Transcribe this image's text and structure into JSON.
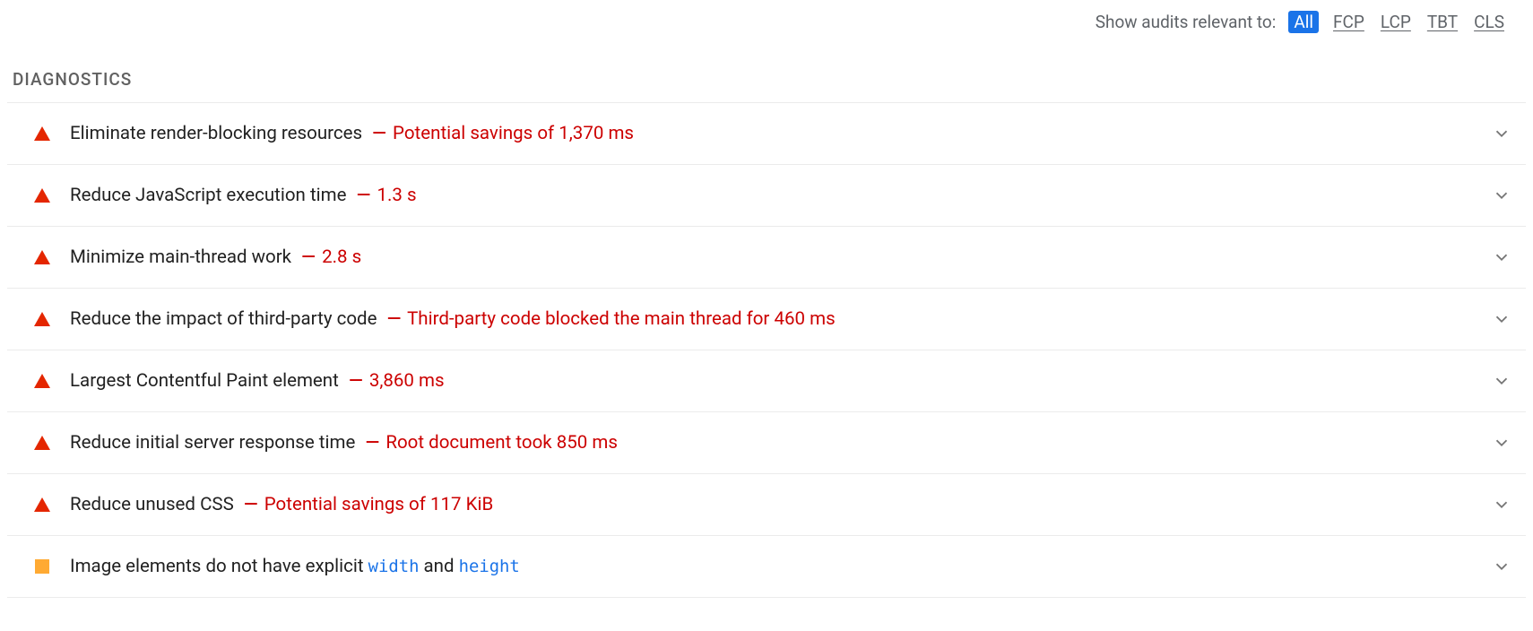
{
  "colors": {
    "background": "#ffffff",
    "text_primary": "#212121",
    "text_secondary": "#5f6368",
    "section_title": "#616161",
    "divider": "#ebebeb",
    "fail_icon": "#e42600",
    "warn_icon": "#ffaa33",
    "detail_text": "#cc0000",
    "link_blue": "#1a73e8",
    "chevron": "#757575",
    "chip_active_bg": "#1a73e8",
    "chip_active_text": "#ffffff"
  },
  "filter": {
    "label": "Show audits relevant to:",
    "chips": [
      {
        "label": "All",
        "active": true
      },
      {
        "label": "FCP",
        "active": false
      },
      {
        "label": "LCP",
        "active": false
      },
      {
        "label": "TBT",
        "active": false
      },
      {
        "label": "CLS",
        "active": false
      }
    ]
  },
  "section": {
    "title": "DIAGNOSTICS"
  },
  "audits": [
    {
      "severity": "fail",
      "title": "Eliminate render-blocking resources",
      "separator": "—",
      "detail": "Potential savings of 1,370 ms",
      "code_segments": []
    },
    {
      "severity": "fail",
      "title": "Reduce JavaScript execution time",
      "separator": "—",
      "detail": "1.3 s",
      "code_segments": []
    },
    {
      "severity": "fail",
      "title": "Minimize main-thread work",
      "separator": "—",
      "detail": "2.8 s",
      "code_segments": []
    },
    {
      "severity": "fail",
      "title": "Reduce the impact of third-party code",
      "separator": "—",
      "detail": "Third-party code blocked the main thread for 460 ms",
      "code_segments": []
    },
    {
      "severity": "fail",
      "title": "Largest Contentful Paint element",
      "separator": "—",
      "detail": "3,860 ms",
      "code_segments": []
    },
    {
      "severity": "fail",
      "title": "Reduce initial server response time",
      "separator": "—",
      "detail": "Root document took 850 ms",
      "code_segments": []
    },
    {
      "severity": "fail",
      "title": "Reduce unused CSS",
      "separator": "—",
      "detail": "Potential savings of 117 KiB",
      "code_segments": []
    },
    {
      "severity": "warn",
      "title": "Image elements do not have explicit {0} and {1}",
      "separator": "",
      "detail": "",
      "code_segments": [
        "width",
        "height"
      ]
    }
  ]
}
